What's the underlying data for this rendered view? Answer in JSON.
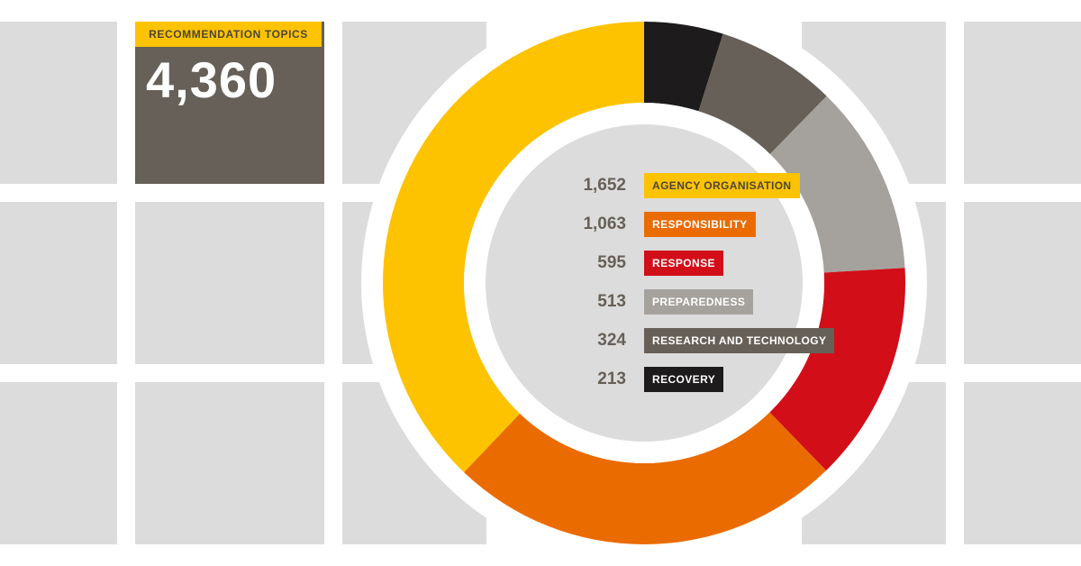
{
  "summary": {
    "label": "RECOMMENDATION TOPICS",
    "value": "4,360"
  },
  "chart_data": {
    "type": "pie",
    "donut": true,
    "total": 4360,
    "start_angle_deg": 0,
    "direction": "clockwise",
    "legend_placement": "center",
    "slices": [
      {
        "label": "RECOVERY",
        "display_value": "213",
        "value": 213,
        "color": "#1d1b1b",
        "label_color": "#ffffff"
      },
      {
        "label": "RESEARCH AND TECHNOLOGY",
        "display_value": "324",
        "value": 324,
        "color": "#676058",
        "label_color": "#ffffff"
      },
      {
        "label": "PREPAREDNESS",
        "display_value": "513",
        "value": 513,
        "color": "#a5a29d",
        "label_color": "#ffffff"
      },
      {
        "label": "RESPONSE",
        "display_value": "595",
        "value": 595,
        "color": "#d20e18",
        "label_color": "#ffffff"
      },
      {
        "label": "RESPONSIBILITY",
        "display_value": "1,063",
        "value": 1063,
        "color": "#ea6b00",
        "label_color": "#ffffff"
      },
      {
        "label": "AGENCY ORGANISATION",
        "display_value": "1,652",
        "value": 1652,
        "color": "#fdc300",
        "label_color": "#4a4540"
      }
    ],
    "legend_order": [
      5,
      4,
      3,
      2,
      1,
      0
    ]
  },
  "colors": {
    "background": "#ffffff",
    "tile": "#dcdcdc",
    "inner_disc": "#dcdcdc",
    "card": "#676058",
    "accent": "#fdc300"
  }
}
